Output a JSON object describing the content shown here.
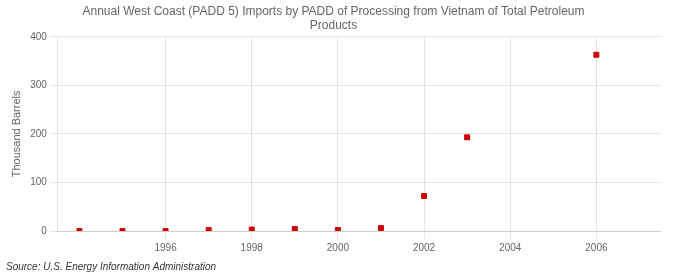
{
  "chart_data": {
    "type": "scatter",
    "title": "Annual West Coast (PADD 5) Imports by PADD of Processing from Vietnam of Total Petroleum\nProducts",
    "ylabel": "Thousand Barrels",
    "annotations": [
      "Source: U.S. Energy Information Administration"
    ],
    "x": [
      1994,
      1995,
      1996,
      1997,
      1998,
      1999,
      2000,
      2001,
      2002,
      2003,
      2006
    ],
    "values": [
      0,
      0,
      0,
      2,
      3,
      4,
      2,
      6,
      72,
      193,
      363
    ],
    "color": "#cc0000",
    "marker": "square",
    "xlim": [
      1993.5,
      2007.5
    ],
    "xticks": [
      1996,
      1998,
      2000,
      2002,
      2004,
      2006
    ],
    "ylim": [
      0,
      400
    ],
    "yticks": [
      0,
      100,
      200,
      300,
      400
    ],
    "grid": true
  }
}
